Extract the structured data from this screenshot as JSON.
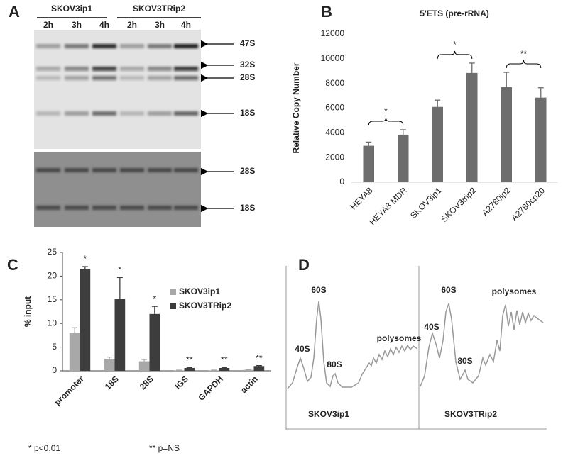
{
  "panel_a": {
    "label": "A",
    "groups": [
      "SKOV3ip1",
      "SKOV3TRip2"
    ],
    "times": [
      "2h",
      "3h",
      "4h",
      "2h",
      "3h",
      "4h"
    ],
    "bands": [
      "47S",
      "32S",
      "28S",
      "18S",
      "28S",
      "18S"
    ]
  },
  "chart_data": [
    {
      "type": "bar",
      "label": "B",
      "title": "5'ETS (pre-rRNA)",
      "y_label": "Relative Copy Number",
      "categories": [
        "HEYA8",
        "HEYA8 MDR",
        "SKOV3ip1",
        "SKOV3trip2",
        "A2780ip2",
        "A2780cp20"
      ],
      "values": [
        2950,
        3850,
        6100,
        8850,
        7700,
        6850
      ],
      "errors": [
        300,
        400,
        550,
        800,
        1200,
        800
      ],
      "color": "#6d6d6d",
      "ylim": [
        0,
        12000
      ],
      "yticks": [
        0,
        2000,
        4000,
        6000,
        8000,
        10000,
        12000
      ],
      "annotations": [
        "*",
        "*",
        "**"
      ]
    },
    {
      "type": "bar",
      "label": "C",
      "y_label": "% input",
      "categories": [
        "promoter",
        "18S",
        "28S",
        "IGS",
        "GAPDH",
        "actin"
      ],
      "series": [
        {
          "name": "SKOV3ip1",
          "color": "#a8a8a8",
          "values": [
            8,
            2.5,
            2,
            0.1,
            0.1,
            0.2
          ],
          "errors": [
            1.1,
            0.4,
            0.4,
            0.05,
            0.05,
            0.05
          ]
        },
        {
          "name": "SKOV3TRip2",
          "color": "#3d3d3d",
          "values": [
            21.5,
            15.2,
            12,
            0.6,
            0.6,
            1
          ],
          "errors": [
            0.5,
            4.5,
            1.6,
            0.1,
            0.1,
            0.1
          ]
        }
      ],
      "ylim": [
        0,
        25
      ],
      "yticks": [
        0,
        5,
        10,
        15,
        20,
        25
      ],
      "legend": "right",
      "annotations": [
        "*",
        "*",
        "*",
        "**",
        "**",
        "**"
      ]
    }
  ],
  "panel_d": {
    "label": "D",
    "profiles": [
      {
        "name": "SKOV3ip1",
        "peaks": [
          "40S",
          "60S",
          "80S",
          "polysomes"
        ]
      },
      {
        "name": "SKOV3TRip2",
        "peaks": [
          "40S",
          "60S",
          "80S",
          "polysomes"
        ]
      }
    ]
  },
  "footnotes": [
    "* p<0.01",
    "** p=NS"
  ]
}
